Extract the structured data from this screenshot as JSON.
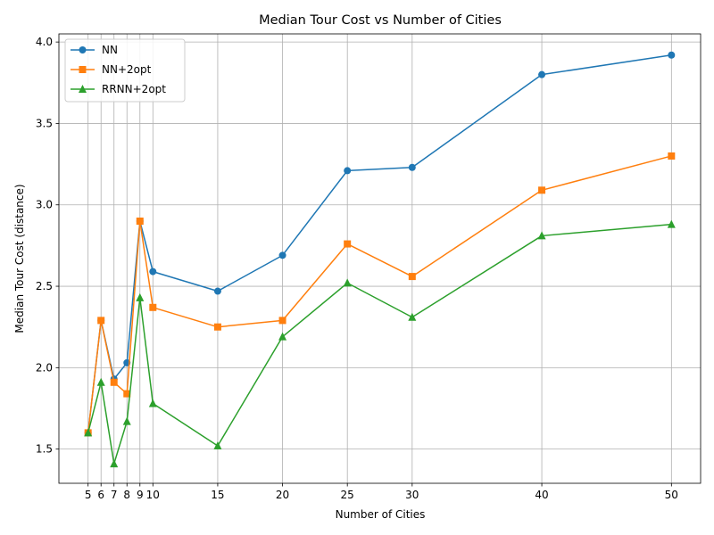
{
  "chart_data": {
    "type": "line",
    "title": "Median Tour Cost vs Number of Cities",
    "xlabel": "Number of Cities",
    "ylabel": "Median Tour Cost (distance)",
    "x": [
      5,
      6,
      7,
      8,
      9,
      10,
      15,
      20,
      25,
      30,
      40,
      50
    ],
    "xticks": [
      "5",
      "6",
      "7",
      "8",
      "9",
      "10",
      "15",
      "20",
      "25",
      "30",
      "40",
      "50"
    ],
    "yticks": [
      "1.5",
      "2.0",
      "2.5",
      "3.0",
      "3.5",
      "4.0"
    ],
    "xlim": [
      2.75,
      52.25
    ],
    "ylim": [
      1.29,
      4.05
    ],
    "grid": true,
    "legend": "top-left",
    "series": [
      {
        "name": "NN",
        "marker": "circle",
        "color": "#1f77b4",
        "values": [
          1.6,
          2.29,
          1.93,
          2.03,
          2.9,
          2.59,
          2.47,
          2.69,
          3.21,
          3.23,
          3.8,
          3.92
        ]
      },
      {
        "name": "NN+2opt",
        "marker": "square",
        "color": "#ff7f0e",
        "values": [
          1.6,
          2.29,
          1.91,
          1.84,
          2.9,
          2.37,
          2.25,
          2.29,
          2.76,
          2.56,
          3.09,
          3.3
        ]
      },
      {
        "name": "RRNN+2opt",
        "marker": "triangle",
        "color": "#2ca02c",
        "values": [
          1.6,
          1.91,
          1.41,
          1.67,
          2.43,
          1.78,
          1.52,
          2.19,
          2.52,
          2.31,
          2.81,
          2.88
        ]
      }
    ]
  }
}
